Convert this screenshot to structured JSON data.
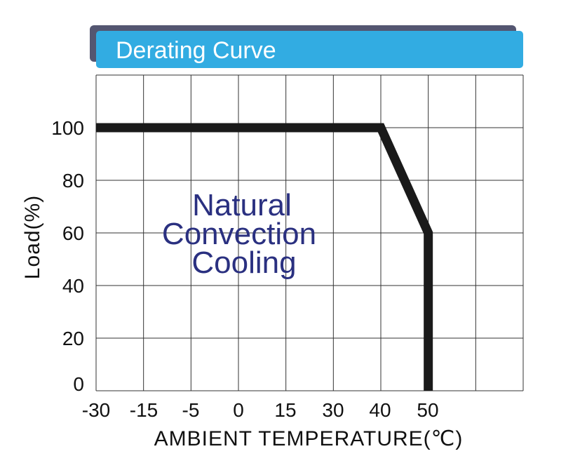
{
  "chart_data": {
    "type": "line",
    "title": "Derating Curve",
    "xlabel": "AMBIENT TEMPERATURE(℃)",
    "ylabel": "Load(%)",
    "x_tick_labels": [
      "-30",
      "-15",
      "-5",
      "0",
      "15",
      "30",
      "40",
      "50"
    ],
    "y_tick_labels": [
      "0",
      "20",
      "40",
      "60",
      "80",
      "100"
    ],
    "y_ticks": [
      0,
      20,
      40,
      60,
      80,
      100
    ],
    "ylim": [
      0,
      100
    ],
    "grid": true,
    "series": [
      {
        "x": [
          "-30",
          "40",
          "50",
          "50"
        ],
        "y": [
          100,
          100,
          60,
          0
        ]
      }
    ],
    "annotation": [
      "Natural",
      "Convection",
      "Cooling"
    ],
    "colors": {
      "title_bar": "#32ace2",
      "title_shadow": "#545671",
      "curve": "#1a1a1a",
      "annotation": "#2a3080",
      "grid": "#333333"
    }
  }
}
